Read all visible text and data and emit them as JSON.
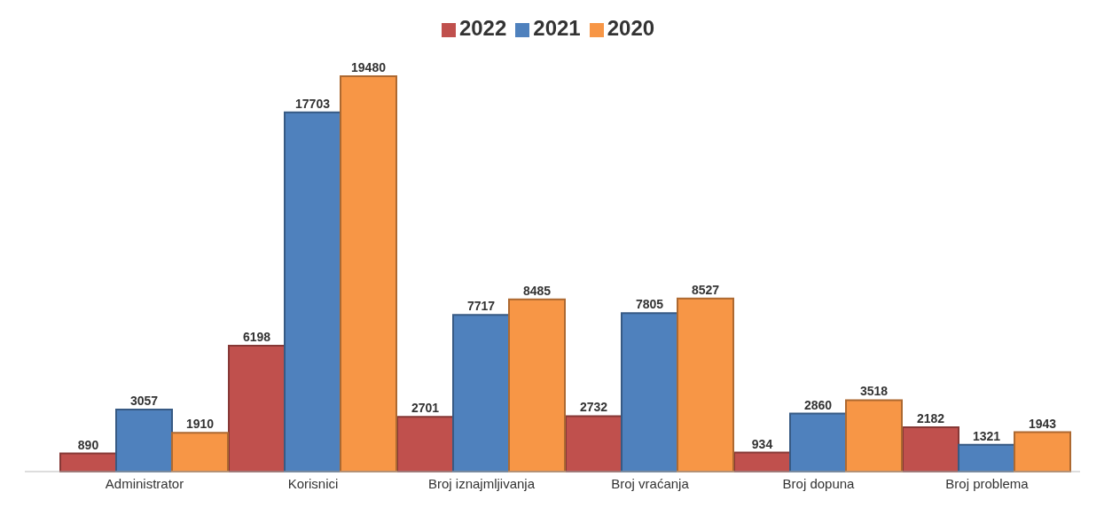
{
  "chart_data": {
    "type": "bar",
    "categories": [
      "Administrator",
      "Korisnici",
      "Broj iznajmljivanja",
      "Broj vraćanja",
      "Broj dopuna",
      "Broj problema"
    ],
    "series": [
      {
        "name": "2022",
        "color": "#c0504d",
        "values": [
          890,
          6198,
          2701,
          2732,
          934,
          2182
        ]
      },
      {
        "name": "2021",
        "color": "#4f81bd",
        "values": [
          3057,
          17703,
          7717,
          7805,
          2860,
          1321
        ]
      },
      {
        "name": "2020",
        "color": "#f79646",
        "values": [
          1910,
          19480,
          8485,
          8527,
          3518,
          1943
        ]
      }
    ],
    "data_labels": true,
    "legend": "top",
    "grid": false,
    "tick_labels": "x"
  }
}
